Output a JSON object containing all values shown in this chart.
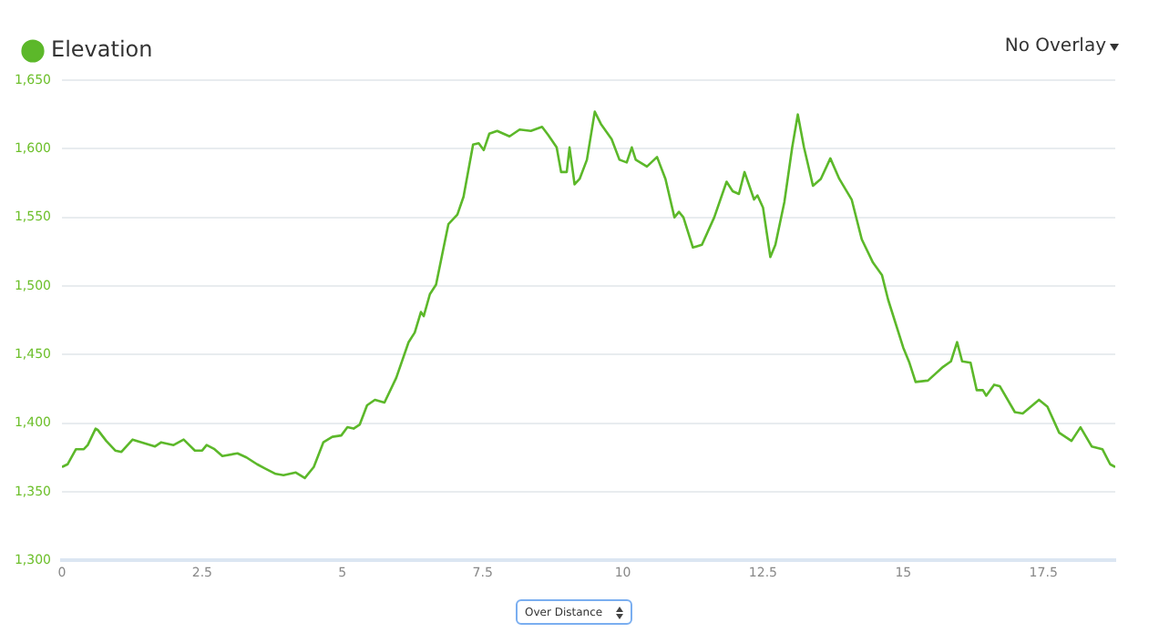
{
  "chart_data": {
    "type": "line",
    "annotations": [
      "No Overlay",
      "Over Distance"
    ],
    "x": [
      0,
      0.1,
      0.25,
      0.39,
      0.46,
      0.6,
      0.64,
      0.79,
      0.95,
      1.06,
      1.26,
      1.42,
      1.66,
      1.77,
      1.99,
      2.17,
      2.37,
      2.5,
      2.58,
      2.72,
      2.86,
      3.13,
      3.29,
      3.48,
      3.62,
      3.81,
      3.95,
      4.17,
      4.33,
      4.49,
      4.66,
      4.82,
      4.98,
      5.09,
      5.2,
      5.31,
      5.44,
      5.58,
      5.75,
      5.96,
      6.18,
      6.29,
      6.4,
      6.45,
      6.56,
      6.67,
      6.78,
      6.89,
      7.05,
      7.16,
      7.33,
      7.43,
      7.52,
      7.62,
      7.76,
      7.98,
      8.16,
      8.36,
      8.56,
      8.67,
      8.82,
      8.9,
      9.0,
      9.05,
      9.14,
      9.23,
      9.36,
      9.5,
      9.61,
      9.8,
      9.94,
      10.07,
      10.16,
      10.23,
      10.43,
      10.61,
      10.76,
      10.92,
      11.0,
      11.08,
      11.25,
      11.41,
      11.63,
      11.85,
      11.96,
      12.07,
      12.17,
      12.34,
      12.4,
      12.5,
      12.63,
      12.72,
      12.88,
      13.02,
      13.12,
      13.23,
      13.39,
      13.53,
      13.7,
      13.86,
      14.08,
      14.26,
      14.46,
      14.62,
      14.73,
      15.0,
      15.11,
      15.22,
      15.44,
      15.71,
      15.85,
      15.96,
      16.05,
      16.2,
      16.31,
      16.42,
      16.48,
      16.62,
      16.72,
      16.99,
      17.13,
      17.42,
      17.57,
      17.78,
      18.0,
      18.16,
      18.36,
      18.55,
      18.69,
      18.78
    ],
    "series": [
      {
        "name": "Elevation",
        "color": "#5cb82a",
        "values": [
          1368,
          1370,
          1381,
          1381,
          1384,
          1396,
          1395,
          1387,
          1380,
          1379,
          1388,
          1386,
          1383,
          1386,
          1384,
          1388,
          1380,
          1380,
          1384,
          1381,
          1376,
          1378,
          1375,
          1370,
          1367,
          1363,
          1362,
          1364,
          1360,
          1368,
          1386,
          1390,
          1391,
          1397,
          1396,
          1399,
          1413,
          1417,
          1415,
          1433,
          1459,
          1466,
          1481,
          1478,
          1494,
          1501,
          1523,
          1545,
          1552,
          1565,
          1603,
          1604,
          1599,
          1611,
          1613,
          1609,
          1614,
          1613,
          1616,
          1610,
          1601,
          1583,
          1583,
          1601,
          1574,
          1578,
          1592,
          1627,
          1618,
          1607,
          1592,
          1590,
          1601,
          1592,
          1587,
          1594,
          1578,
          1550,
          1554,
          1550,
          1528,
          1530,
          1550,
          1576,
          1569,
          1567,
          1583,
          1563,
          1566,
          1557,
          1521,
          1530,
          1561,
          1601,
          1625,
          1601,
          1573,
          1578,
          1593,
          1578,
          1563,
          1534,
          1517,
          1508,
          1490,
          1455,
          1444,
          1430,
          1431,
          1441,
          1445,
          1459,
          1445,
          1444,
          1424,
          1424,
          1420,
          1428,
          1427,
          1408,
          1407,
          1417,
          1412,
          1393,
          1387,
          1397,
          1383,
          1381,
          1370,
          1368
        ]
      }
    ],
    "xlim": [
      0,
      18.78
    ],
    "xticks": [
      0,
      2.5,
      5,
      7.5,
      10,
      12.5,
      15,
      17.5
    ],
    "ylim": [
      1300,
      1650
    ],
    "yticks": [
      {
        "value": 1300,
        "label": "1,300"
      },
      {
        "value": 1350,
        "label": "1,350"
      },
      {
        "value": 1400,
        "label": "1,400"
      },
      {
        "value": 1450,
        "label": "1,450"
      },
      {
        "value": 1500,
        "label": "1,500"
      },
      {
        "value": 1550,
        "label": "1,550"
      },
      {
        "value": 1600,
        "label": "1,600"
      },
      {
        "value": 1650,
        "label": "1,650"
      }
    ],
    "grid": "y",
    "legend": "top left",
    "marker": "none",
    "line_style": "solid"
  }
}
